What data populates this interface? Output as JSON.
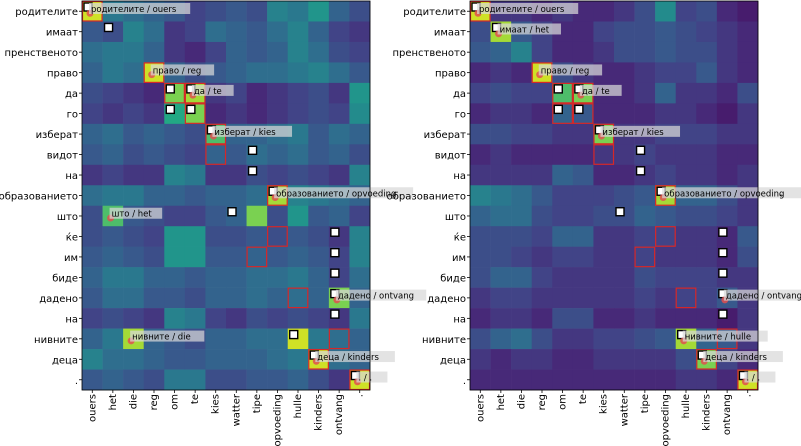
{
  "chart_data": {
    "type": "heatmap",
    "y_labels": [
      "родителите",
      "имаат",
      "пренственото",
      "право",
      "да",
      "го",
      "изберат",
      "видот",
      "на",
      "образованието",
      "што",
      "ќе",
      "им",
      "биде",
      "дадено",
      "на",
      "нивните",
      "деца",
      "."
    ],
    "x_labels": [
      "ouers",
      "het",
      "die",
      "reg",
      "om",
      "te",
      "kies",
      "watter",
      "tipe",
      "opvoeding",
      "hulle",
      "kinders",
      "ontvang",
      "."
    ],
    "panels": [
      {
        "name": "left-heatmap",
        "values": [
          [
            0.95,
            0.5,
            0.45,
            0.4,
            0.35,
            0.25,
            0.3,
            0.35,
            0.3,
            0.55,
            0.5,
            0.65,
            0.4,
            0.3
          ],
          [
            0.35,
            0.3,
            0.55,
            0.45,
            0.2,
            0.25,
            0.45,
            0.4,
            0.35,
            0.45,
            0.55,
            0.4,
            0.25,
            0.2
          ],
          [
            0.45,
            0.5,
            0.5,
            0.4,
            0.2,
            0.15,
            0.25,
            0.4,
            0.35,
            0.4,
            0.55,
            0.45,
            0.3,
            0.25
          ],
          [
            0.4,
            0.5,
            0.45,
            0.95,
            0.4,
            0.3,
            0.35,
            0.4,
            0.45,
            0.45,
            0.5,
            0.55,
            0.45,
            0.35
          ],
          [
            0.3,
            0.25,
            0.2,
            0.15,
            0.85,
            0.9,
            0.2,
            0.25,
            0.15,
            0.2,
            0.25,
            0.3,
            0.2,
            0.65
          ],
          [
            0.25,
            0.2,
            0.25,
            0.2,
            0.75,
            0.85,
            0.15,
            0.2,
            0.15,
            0.2,
            0.25,
            0.3,
            0.25,
            0.6
          ],
          [
            0.4,
            0.45,
            0.35,
            0.4,
            0.35,
            0.3,
            0.8,
            0.4,
            0.4,
            0.45,
            0.5,
            0.35,
            0.45,
            0.4
          ],
          [
            0.35,
            0.4,
            0.3,
            0.35,
            0.3,
            0.25,
            0.4,
            0.35,
            0.45,
            0.4,
            0.45,
            0.35,
            0.4,
            0.3
          ],
          [
            0.2,
            0.25,
            0.2,
            0.2,
            0.55,
            0.5,
            0.2,
            0.2,
            0.3,
            0.25,
            0.3,
            0.25,
            0.2,
            0.55
          ],
          [
            0.45,
            0.5,
            0.5,
            0.4,
            0.4,
            0.35,
            0.4,
            0.4,
            0.45,
            0.9,
            0.55,
            0.5,
            0.45,
            0.4
          ],
          [
            0.3,
            0.8,
            0.35,
            0.3,
            0.25,
            0.25,
            0.35,
            0.4,
            0.85,
            0.3,
            0.65,
            0.35,
            0.4,
            0.25
          ],
          [
            0.3,
            0.35,
            0.3,
            0.25,
            0.65,
            0.65,
            0.3,
            0.3,
            0.35,
            0.3,
            0.35,
            0.3,
            0.2,
            0.55
          ],
          [
            0.35,
            0.4,
            0.35,
            0.3,
            0.65,
            0.65,
            0.35,
            0.35,
            0.4,
            0.35,
            0.4,
            0.35,
            0.25,
            0.55
          ],
          [
            0.4,
            0.5,
            0.5,
            0.4,
            0.4,
            0.35,
            0.4,
            0.4,
            0.45,
            0.45,
            0.5,
            0.4,
            0.25,
            0.45
          ],
          [
            0.35,
            0.45,
            0.45,
            0.35,
            0.35,
            0.3,
            0.4,
            0.4,
            0.45,
            0.4,
            0.45,
            0.4,
            0.85,
            0.4
          ],
          [
            0.25,
            0.3,
            0.25,
            0.2,
            0.55,
            0.5,
            0.25,
            0.2,
            0.3,
            0.25,
            0.3,
            0.25,
            0.2,
            0.5
          ],
          [
            0.4,
            0.5,
            0.9,
            0.4,
            0.35,
            0.3,
            0.4,
            0.4,
            0.45,
            0.45,
            0.95,
            0.5,
            0.45,
            0.4
          ],
          [
            0.55,
            0.45,
            0.45,
            0.4,
            0.35,
            0.35,
            0.4,
            0.4,
            0.4,
            0.45,
            0.5,
            0.95,
            0.45,
            0.4
          ],
          [
            0.35,
            0.4,
            0.35,
            0.3,
            0.5,
            0.5,
            0.3,
            0.3,
            0.35,
            0.35,
            0.4,
            0.3,
            0.2,
            0.95
          ]
        ],
        "white_markers": [
          [
            0,
            0
          ],
          [
            1,
            1
          ],
          [
            4,
            4
          ],
          [
            4,
            5
          ],
          [
            5,
            4
          ],
          [
            5,
            5
          ],
          [
            6,
            6
          ],
          [
            7,
            8
          ],
          [
            8,
            8
          ],
          [
            9,
            9
          ],
          [
            10,
            7
          ],
          [
            11,
            12
          ],
          [
            12,
            12
          ],
          [
            13,
            12
          ],
          [
            14,
            12
          ],
          [
            15,
            12
          ],
          [
            16,
            10
          ],
          [
            17,
            11
          ],
          [
            18,
            13
          ]
        ],
        "red_boxes": [
          [
            0,
            0
          ],
          [
            3,
            3
          ],
          [
            4,
            4
          ],
          [
            4,
            5
          ],
          [
            5,
            5
          ],
          [
            6,
            6
          ],
          [
            7,
            6
          ],
          [
            9,
            9
          ],
          [
            11,
            9
          ],
          [
            12,
            8
          ],
          [
            14,
            10
          ],
          [
            16,
            12
          ],
          [
            17,
            11
          ],
          [
            18,
            13
          ]
        ],
        "annotations": [
          {
            "row": 0,
            "col": 0,
            "text": "родителите / ouers"
          },
          {
            "row": 3,
            "col": 3,
            "text": "право / reg"
          },
          {
            "row": 4,
            "col": 5,
            "text": "да / te"
          },
          {
            "row": 6,
            "col": 6,
            "text": "изберат / kies"
          },
          {
            "row": 9,
            "col": 9,
            "text": "образованието / opvoeding"
          },
          {
            "row": 10,
            "col": 1,
            "text": "што / het"
          },
          {
            "row": 14,
            "col": 12,
            "text": "дадено / ontvang"
          },
          {
            "row": 16,
            "col": 2,
            "text": "нивните / die"
          },
          {
            "row": 17,
            "col": 11,
            "text": "деца / kinders"
          },
          {
            "row": 18,
            "col": 13,
            "text": ". / ."
          }
        ]
      },
      {
        "name": "right-heatmap",
        "values": [
          [
            0.95,
            0.2,
            0.2,
            0.15,
            0.2,
            0.15,
            0.15,
            0.2,
            0.3,
            0.6,
            0.25,
            0.3,
            0.15,
            0.1
          ],
          [
            0.3,
            0.9,
            0.35,
            0.25,
            0.15,
            0.15,
            0.25,
            0.3,
            0.3,
            0.35,
            0.3,
            0.25,
            0.2,
            0.15
          ],
          [
            0.35,
            0.4,
            0.55,
            0.25,
            0.15,
            0.15,
            0.2,
            0.3,
            0.3,
            0.35,
            0.3,
            0.3,
            0.2,
            0.15
          ],
          [
            0.15,
            0.2,
            0.15,
            0.95,
            0.3,
            0.2,
            0.15,
            0.15,
            0.2,
            0.25,
            0.25,
            0.35,
            0.2,
            0.15
          ],
          [
            0.25,
            0.3,
            0.25,
            0.25,
            0.8,
            0.85,
            0.15,
            0.15,
            0.2,
            0.4,
            0.2,
            0.2,
            0.15,
            0.3
          ],
          [
            0.15,
            0.2,
            0.2,
            0.15,
            0.4,
            0.35,
            0.15,
            0.15,
            0.15,
            0.2,
            0.2,
            0.15,
            0.1,
            0.2
          ],
          [
            0.3,
            0.3,
            0.25,
            0.25,
            0.2,
            0.2,
            0.85,
            0.2,
            0.2,
            0.25,
            0.25,
            0.25,
            0.2,
            0.2
          ],
          [
            0.15,
            0.2,
            0.15,
            0.15,
            0.15,
            0.15,
            0.2,
            0.2,
            0.25,
            0.2,
            0.2,
            0.2,
            0.15,
            0.15
          ],
          [
            0.2,
            0.2,
            0.2,
            0.2,
            0.4,
            0.35,
            0.15,
            0.15,
            0.2,
            0.25,
            0.2,
            0.2,
            0.15,
            0.2
          ],
          [
            0.55,
            0.5,
            0.45,
            0.35,
            0.25,
            0.25,
            0.25,
            0.3,
            0.35,
            0.9,
            0.4,
            0.4,
            0.3,
            0.2
          ],
          [
            0.4,
            0.45,
            0.45,
            0.3,
            0.25,
            0.25,
            0.3,
            0.3,
            0.4,
            0.35,
            0.3,
            0.3,
            0.25,
            0.2
          ],
          [
            0.3,
            0.3,
            0.3,
            0.25,
            0.4,
            0.4,
            0.2,
            0.2,
            0.25,
            0.25,
            0.2,
            0.2,
            0.15,
            0.35
          ],
          [
            0.3,
            0.3,
            0.25,
            0.2,
            0.25,
            0.25,
            0.2,
            0.2,
            0.25,
            0.2,
            0.2,
            0.2,
            0.15,
            0.3
          ],
          [
            0.3,
            0.4,
            0.4,
            0.25,
            0.2,
            0.2,
            0.2,
            0.2,
            0.3,
            0.25,
            0.25,
            0.25,
            0.2,
            0.2
          ],
          [
            0.2,
            0.25,
            0.25,
            0.2,
            0.2,
            0.2,
            0.2,
            0.2,
            0.25,
            0.2,
            0.25,
            0.25,
            0.35,
            0.2
          ],
          [
            0.15,
            0.2,
            0.2,
            0.15,
            0.3,
            0.3,
            0.15,
            0.15,
            0.2,
            0.15,
            0.15,
            0.15,
            0.1,
            0.2
          ],
          [
            0.3,
            0.4,
            0.45,
            0.3,
            0.2,
            0.2,
            0.25,
            0.25,
            0.3,
            0.35,
            0.9,
            0.4,
            0.35,
            0.2
          ],
          [
            0.2,
            0.15,
            0.2,
            0.2,
            0.15,
            0.15,
            0.2,
            0.2,
            0.2,
            0.2,
            0.3,
            0.85,
            0.25,
            0.15
          ],
          [
            0.15,
            0.15,
            0.15,
            0.15,
            0.15,
            0.15,
            0.15,
            0.15,
            0.15,
            0.15,
            0.2,
            0.2,
            0.15,
            0.95
          ]
        ],
        "white_markers": [
          [
            0,
            0
          ],
          [
            1,
            1
          ],
          [
            4,
            4
          ],
          [
            4,
            5
          ],
          [
            5,
            4
          ],
          [
            5,
            5
          ],
          [
            6,
            6
          ],
          [
            7,
            8
          ],
          [
            8,
            8
          ],
          [
            9,
            9
          ],
          [
            10,
            7
          ],
          [
            11,
            12
          ],
          [
            12,
            12
          ],
          [
            13,
            12
          ],
          [
            14,
            12
          ],
          [
            15,
            12
          ],
          [
            16,
            10
          ],
          [
            17,
            11
          ],
          [
            18,
            13
          ]
        ],
        "red_boxes": [
          [
            0,
            0
          ],
          [
            3,
            3
          ],
          [
            4,
            4
          ],
          [
            4,
            5
          ],
          [
            5,
            4
          ],
          [
            5,
            5
          ],
          [
            6,
            6
          ],
          [
            7,
            6
          ],
          [
            9,
            9
          ],
          [
            11,
            9
          ],
          [
            12,
            8
          ],
          [
            14,
            10
          ],
          [
            16,
            12
          ],
          [
            17,
            11
          ],
          [
            18,
            13
          ]
        ],
        "annotations": [
          {
            "row": 0,
            "col": 0,
            "text": "родителите / ouers"
          },
          {
            "row": 1,
            "col": 1,
            "text": "имаат / het"
          },
          {
            "row": 3,
            "col": 3,
            "text": "право / reg"
          },
          {
            "row": 4,
            "col": 5,
            "text": "да / te"
          },
          {
            "row": 6,
            "col": 6,
            "text": "изберат / kies"
          },
          {
            "row": 9,
            "col": 9,
            "text": "образованието / opvoeding"
          },
          {
            "row": 14,
            "col": 12,
            "text": "дадено / ontvang"
          },
          {
            "row": 16,
            "col": 10,
            "text": "нивните / hulle"
          },
          {
            "row": 17,
            "col": 11,
            "text": "деца / kinders"
          },
          {
            "row": 18,
            "col": 13,
            "text": ". / ."
          }
        ]
      }
    ],
    "colormap": "viridis",
    "extra_mark": "-"
  }
}
